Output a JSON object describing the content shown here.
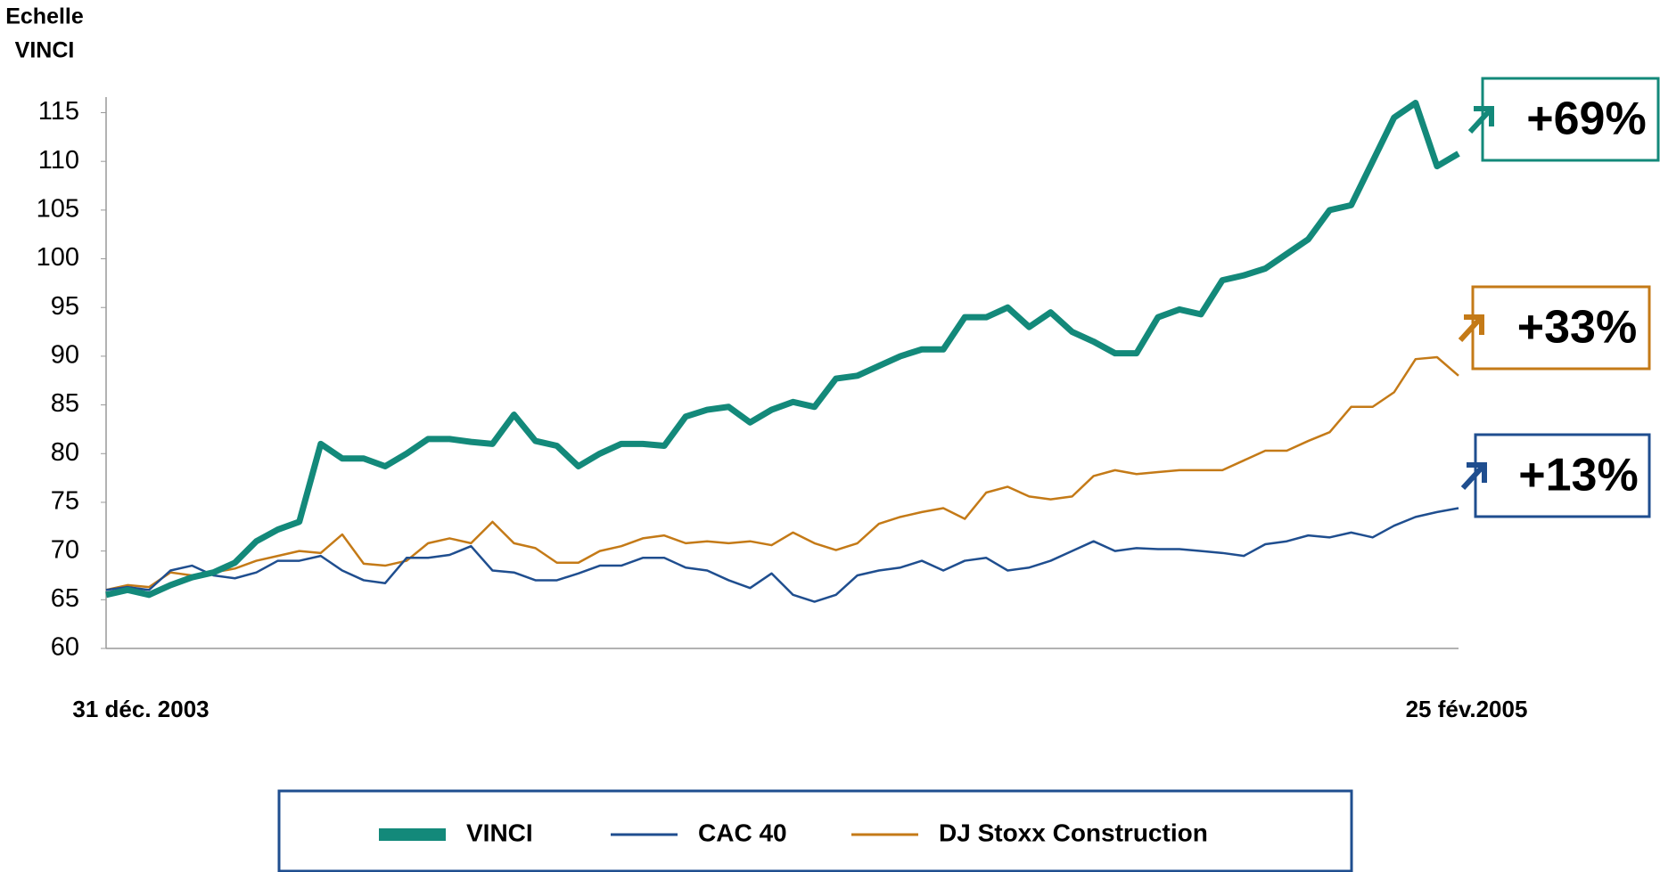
{
  "chart_data": {
    "type": "line",
    "ylabel": [
      "Echelle",
      "VINCI"
    ],
    "categories": [
      "31 déc. 2003",
      null,
      null,
      null,
      null,
      null,
      null,
      null,
      null,
      null,
      null,
      null,
      null,
      null,
      null,
      null,
      null,
      null,
      null,
      null,
      null,
      null,
      null,
      null,
      null,
      null,
      null,
      null,
      null,
      null,
      null,
      null,
      null,
      null,
      null,
      null,
      null,
      null,
      null,
      null,
      null,
      null,
      null,
      null,
      null,
      null,
      null,
      null,
      null,
      null,
      null,
      null,
      null,
      null,
      null,
      null,
      null,
      null,
      null,
      null,
      null,
      null,
      null,
      "25 fév.2005"
    ],
    "series": [
      {
        "name": "VINCI",
        "color": "#13897a",
        "width": 7,
        "values": [
          65.5,
          66,
          65.5,
          66.5,
          67.3,
          67.8,
          68.8,
          71,
          72.2,
          73,
          81,
          79.5,
          79.5,
          78.7,
          80,
          81.5,
          81.5,
          81.2,
          81,
          84,
          81.3,
          80.8,
          78.7,
          80,
          81,
          81,
          80.8,
          83.8,
          84.5,
          84.8,
          83.2,
          84.5,
          85.3,
          84.8,
          87.7,
          88,
          89,
          90,
          90.7,
          90.7,
          94,
          94,
          95,
          93,
          94.5,
          92.5,
          91.5,
          90.3,
          90.3,
          94,
          94.8,
          94.3,
          97.8,
          98.3,
          99,
          100.5,
          102,
          105,
          105.5,
          110,
          114.5,
          116,
          109.5,
          110.8
        ]
      },
      {
        "name": "CAC 40",
        "color": "#1f4e8f",
        "width": 2.5,
        "values": [
          66,
          66.3,
          66,
          68,
          68.5,
          67.5,
          67.2,
          67.8,
          69,
          69,
          69.5,
          68,
          67,
          66.7,
          69.3,
          69.3,
          69.6,
          70.5,
          68,
          67.8,
          67,
          67,
          67.7,
          68.5,
          68.5,
          69.3,
          69.3,
          68.3,
          68,
          67,
          66.2,
          67.7,
          65.5,
          64.8,
          65.5,
          67.5,
          68,
          68.3,
          69,
          68,
          69,
          69.3,
          68,
          68.3,
          69,
          70,
          71,
          70,
          70.3,
          70.2,
          70.2,
          70,
          69.8,
          69.5,
          70.7,
          71,
          71.6,
          71.4,
          71.9,
          71.4,
          72.6,
          73.5,
          74,
          74.4
        ]
      },
      {
        "name": "DJ Stoxx Construction",
        "color": "#c47a17",
        "width": 2.5,
        "values": [
          66,
          66.5,
          66.3,
          67.8,
          67.5,
          67.8,
          68.2,
          69,
          69.5,
          70,
          69.8,
          71.7,
          68.7,
          68.5,
          69,
          70.8,
          71.3,
          70.8,
          73,
          70.8,
          70.3,
          68.8,
          68.8,
          70,
          70.5,
          71.3,
          71.6,
          70.8,
          71,
          70.8,
          71,
          70.6,
          71.9,
          70.8,
          70.1,
          70.8,
          72.8,
          73.5,
          74,
          74.4,
          73.3,
          76,
          76.6,
          75.6,
          75.3,
          75.6,
          77.7,
          78.3,
          77.9,
          78.1,
          78.3,
          78.3,
          78.3,
          79.3,
          80.3,
          80.3,
          81.3,
          82.2,
          84.8,
          84.8,
          86.3,
          89.7,
          89.9,
          88
        ]
      }
    ],
    "annotations": [
      {
        "text": "+69%",
        "color": "#13897a"
      },
      {
        "text": "+33%",
        "color": "#c47a17"
      },
      {
        "text": "+13%",
        "color": "#1f4e8f"
      }
    ],
    "ylim": [
      60,
      116.6
    ],
    "yticks": [
      60,
      65,
      70,
      75,
      80,
      85,
      90,
      95,
      100,
      105,
      110,
      115
    ],
    "grid": false
  }
}
